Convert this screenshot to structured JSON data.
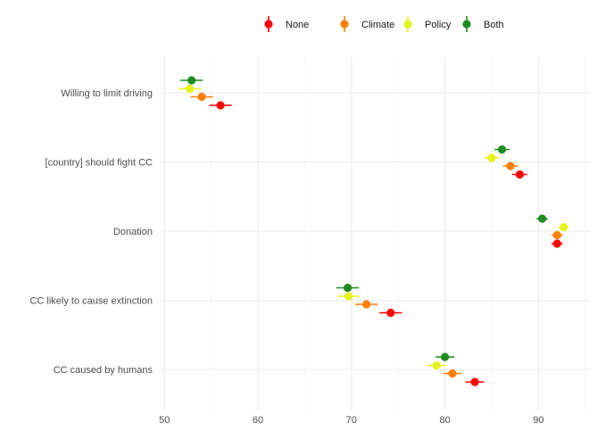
{
  "chart_data": {
    "type": "scatter",
    "orientation": "horizontal",
    "error_bars": true,
    "categories": [
      "Willing to limit driving",
      "[country] should fight CC",
      "Donation",
      "CC likely to cause extinction",
      "CC caused by humans"
    ],
    "series": [
      {
        "name": "None",
        "color": "#ff0000",
        "values": [
          56.0,
          88.0,
          92.0,
          74.2,
          83.2
        ],
        "err": [
          1.2,
          0.8,
          0.6,
          1.2,
          1.0
        ]
      },
      {
        "name": "Climate",
        "color": "#ff7f00",
        "values": [
          54.0,
          87.0,
          92.0,
          71.6,
          80.8
        ],
        "err": [
          1.2,
          0.8,
          0.6,
          1.2,
          1.0
        ]
      },
      {
        "name": "Policy",
        "color": "#e6f219",
        "values": [
          52.7,
          85.0,
          92.7,
          69.7,
          79.1
        ],
        "err": [
          1.2,
          0.8,
          0.5,
          1.2,
          1.0
        ]
      },
      {
        "name": "Both",
        "color": "#1e8c1e",
        "values": [
          52.9,
          86.1,
          90.4,
          69.6,
          80.0
        ],
        "err": [
          1.2,
          0.8,
          0.6,
          1.2,
          1.0
        ]
      }
    ],
    "xlim": [
      49.5,
      95.5
    ],
    "x_ticks": [
      50,
      60,
      70,
      80,
      90
    ],
    "xlabel": "",
    "ylabel": "",
    "title": "",
    "grid": true,
    "legend_position": "top"
  }
}
